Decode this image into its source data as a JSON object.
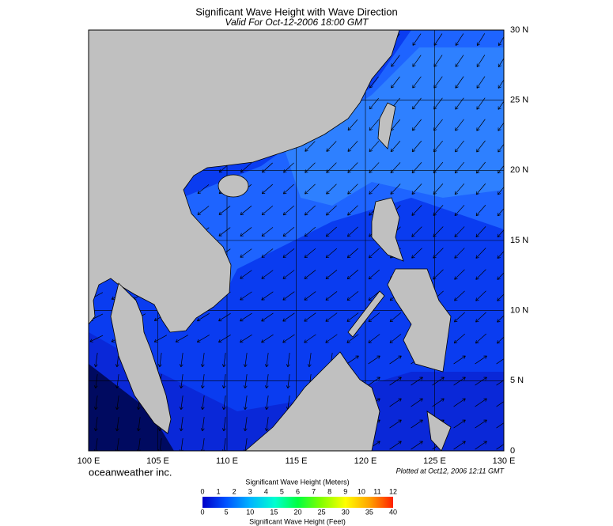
{
  "title": "Significant Wave Height with Wave Direction",
  "subtitle": "Valid For Oct-12-2006 18:00 GMT",
  "map": {
    "lon_lim": [
      100,
      130
    ],
    "lat_lim": [
      0,
      30
    ],
    "lon_ticks": [
      {
        "value": 100,
        "label": "100 E"
      },
      {
        "value": 105,
        "label": "105 E"
      },
      {
        "value": 110,
        "label": "110 E"
      },
      {
        "value": 115,
        "label": "115 E"
      },
      {
        "value": 120,
        "label": "120 E"
      },
      {
        "value": 125,
        "label": "125 E"
      },
      {
        "value": 130,
        "label": "130 E"
      }
    ],
    "lat_ticks": [
      {
        "value": 0,
        "label": "0"
      },
      {
        "value": 5,
        "label": "5 N"
      },
      {
        "value": 10,
        "label": "10 N"
      },
      {
        "value": 15,
        "label": "15 N"
      },
      {
        "value": 20,
        "label": "20 N"
      },
      {
        "value": 25,
        "label": "25 N"
      },
      {
        "value": 30,
        "label": "30 N"
      }
    ]
  },
  "brand": "oceanweather inc.",
  "plotted": "Plotted at Oct12, 2006 12:11 GMT",
  "colorbar": {
    "meters_title": "Significant Wave Height (Meters)",
    "meters_lim": [
      0,
      12
    ],
    "meters_ticks": [
      0,
      1,
      2,
      3,
      4,
      5,
      6,
      7,
      8,
      9,
      10,
      11,
      12
    ],
    "feet_title": "Significant Wave Height (Feet)",
    "feet_lim": [
      0,
      40
    ],
    "feet_ticks": [
      0,
      5,
      10,
      15,
      20,
      25,
      30,
      35,
      40
    ]
  }
}
